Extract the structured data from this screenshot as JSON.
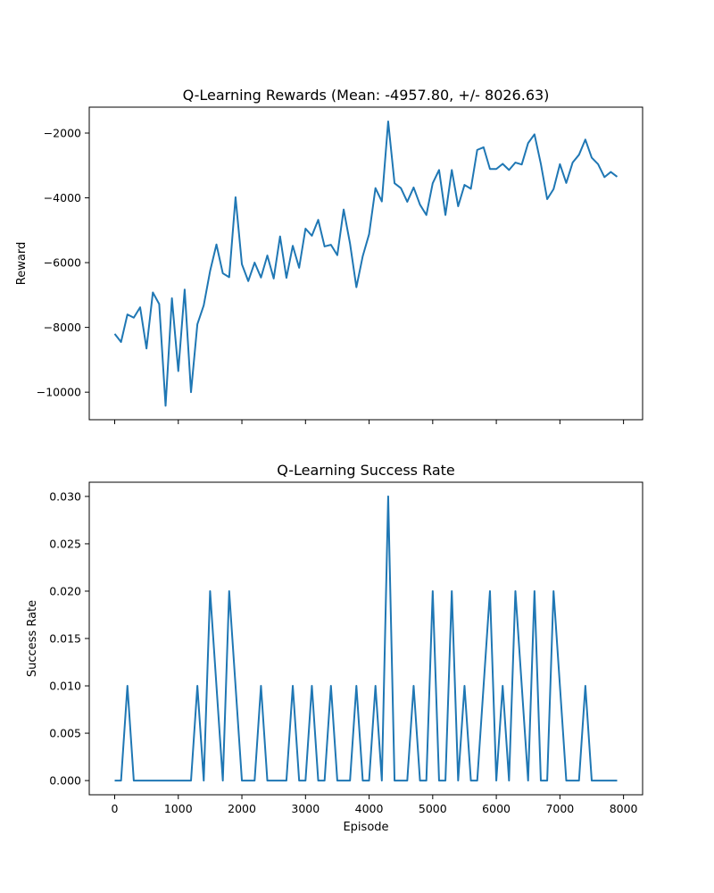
{
  "chart_data": [
    {
      "type": "line",
      "title": "Q-Learning Rewards (Mean: -4957.80, +/- 8026.63)",
      "xlabel": "",
      "ylabel": "Reward",
      "xlim": [
        -400,
        8300
      ],
      "ylim": [
        -10850,
        -1200
      ],
      "grid": false,
      "x_ticks": [
        0,
        1000,
        2000,
        3000,
        4000,
        5000,
        6000,
        7000,
        8000
      ],
      "x_tick_labels_visible": false,
      "y_ticks": [
        -10000,
        -8000,
        -6000,
        -4000,
        -2000
      ],
      "y_tick_labels": [
        "−10000",
        "−8000",
        "−6000",
        "−4000",
        "−2000"
      ],
      "color": "#1f77b4",
      "x": [
        0,
        100,
        200,
        300,
        400,
        500,
        600,
        700,
        800,
        900,
        1000,
        1100,
        1200,
        1300,
        1400,
        1500,
        1600,
        1700,
        1800,
        1900,
        2000,
        2100,
        2200,
        2300,
        2400,
        2500,
        2600,
        2700,
        2800,
        2900,
        3000,
        3100,
        3200,
        3300,
        3400,
        3500,
        3600,
        3700,
        3800,
        3900,
        4000,
        4100,
        4200,
        4300,
        4400,
        4500,
        4600,
        4700,
        4800,
        4900,
        5000,
        5100,
        5200,
        5300,
        5400,
        5500,
        5600,
        5700,
        5800,
        5900,
        6000,
        6100,
        6200,
        6300,
        6400,
        6500,
        6600,
        6700,
        6800,
        6900,
        7000,
        7100,
        7200,
        7300,
        7400,
        7500,
        7600,
        7700,
        7800,
        7900
      ],
      "y": [
        -8200,
        -8450,
        -7600,
        -7700,
        -7380,
        -8650,
        -6920,
        -7280,
        -10420,
        -7100,
        -9350,
        -6830,
        -10000,
        -7900,
        -7320,
        -6260,
        -5440,
        -6330,
        -6450,
        -3980,
        -6050,
        -6570,
        -6000,
        -6460,
        -5780,
        -6490,
        -5190,
        -6470,
        -5480,
        -6160,
        -4950,
        -5170,
        -4680,
        -5500,
        -5450,
        -5770,
        -4360,
        -5410,
        -6760,
        -5800,
        -5120,
        -3700,
        -4110,
        -1640,
        -3550,
        -3700,
        -4120,
        -3680,
        -4210,
        -4530,
        -3550,
        -3140,
        -4530,
        -3140,
        -4260,
        -3600,
        -3720,
        -2520,
        -2440,
        -3110,
        -3110,
        -2950,
        -3140,
        -2910,
        -2970,
        -2310,
        -2040,
        -2950,
        -4040,
        -3730,
        -2960,
        -3540,
        -2910,
        -2670,
        -2200,
        -2760,
        -2960,
        -3360,
        -3200,
        -3350
      ]
    },
    {
      "type": "line",
      "title": "Q-Learning Success Rate",
      "xlabel": "Episode",
      "ylabel": "Success Rate",
      "xlim": [
        -400,
        8300
      ],
      "ylim": [
        -0.0015,
        0.0315
      ],
      "grid": false,
      "x_ticks": [
        0,
        1000,
        2000,
        3000,
        4000,
        5000,
        6000,
        7000,
        8000
      ],
      "x_tick_labels": [
        "0",
        "1000",
        "2000",
        "3000",
        "4000",
        "5000",
        "6000",
        "7000",
        "8000"
      ],
      "y_ticks": [
        0.0,
        0.005,
        0.01,
        0.015,
        0.02,
        0.025,
        0.03
      ],
      "y_tick_labels": [
        "0.000",
        "0.005",
        "0.010",
        "0.015",
        "0.020",
        "0.025",
        "0.030"
      ],
      "color": "#1f77b4",
      "x": [
        0,
        100,
        200,
        300,
        400,
        500,
        600,
        700,
        800,
        900,
        1000,
        1100,
        1200,
        1300,
        1400,
        1500,
        1600,
        1700,
        1800,
        1900,
        2000,
        2100,
        2200,
        2300,
        2400,
        2500,
        2600,
        2700,
        2800,
        2900,
        3000,
        3100,
        3200,
        3300,
        3400,
        3500,
        3600,
        3700,
        3800,
        3900,
        4000,
        4100,
        4200,
        4300,
        4400,
        4500,
        4600,
        4700,
        4800,
        4900,
        5000,
        5100,
        5200,
        5300,
        5400,
        5500,
        5600,
        5700,
        5800,
        5900,
        6000,
        6100,
        6200,
        6300,
        6400,
        6500,
        6600,
        6700,
        6800,
        6900,
        7000,
        7100,
        7200,
        7300,
        7400,
        7500,
        7600,
        7700,
        7800,
        7900
      ],
      "y": [
        0,
        0,
        0.01,
        0,
        0,
        0,
        0,
        0,
        0,
        0,
        0,
        0,
        0,
        0.01,
        0,
        0.02,
        0.01,
        0,
        0.02,
        0.01,
        0,
        0,
        0,
        0.01,
        0,
        0,
        0,
        0,
        0.01,
        0,
        0,
        0.01,
        0,
        0,
        0.01,
        0,
        0,
        0,
        0.01,
        0,
        0,
        0.01,
        0,
        0.03,
        0,
        0,
        0,
        0.01,
        0,
        0,
        0.02,
        0,
        0,
        0.02,
        0,
        0.01,
        0,
        0,
        0.01,
        0.02,
        0,
        0.01,
        0,
        0.02,
        0.01,
        0,
        0.02,
        0,
        0,
        0.02,
        0.01,
        0,
        0,
        0,
        0.01,
        0,
        0,
        0,
        0,
        0
      ]
    }
  ]
}
